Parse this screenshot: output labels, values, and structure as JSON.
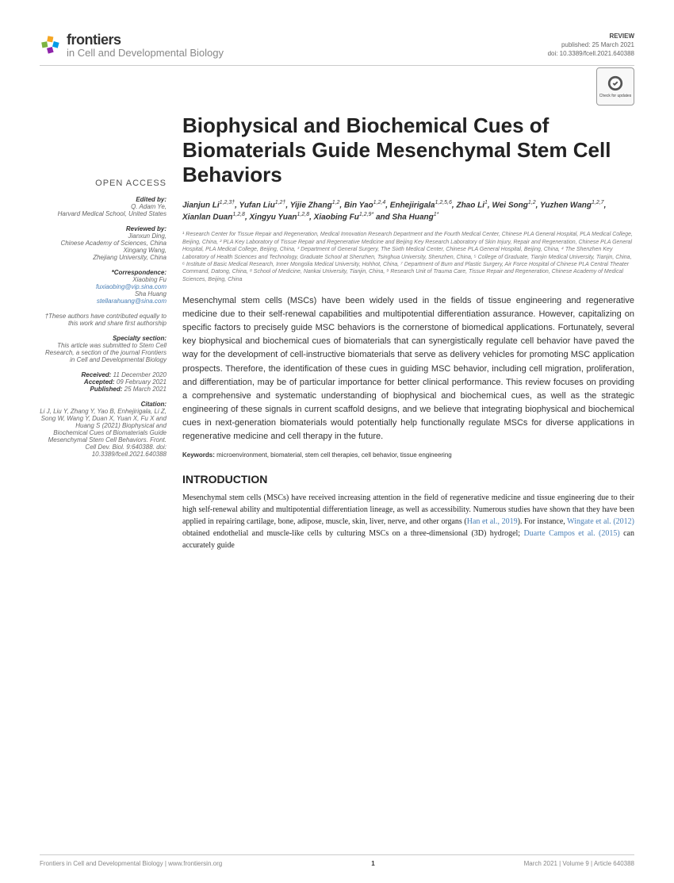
{
  "journal": {
    "brand": "frontiers",
    "sub": "in Cell and Developmental Biology"
  },
  "pub": {
    "type": "REVIEW",
    "published": "published: 25 March 2021",
    "doi": "doi: 10.3389/fcell.2021.640388"
  },
  "check": "Check for updates",
  "title": "Biophysical and Biochemical Cues of Biomaterials Guide Mesenchymal Stem Cell Behaviors",
  "authors_html": "Jianjun Li<sup>1,2,3†</sup>, Yufan Liu<sup>1,2†</sup>, Yijie Zhang<sup>1,2</sup>, Bin Yao<sup>1,2,4</sup>, Enhejirigala<sup>1,2,5,6</sup>, Zhao Li<sup>1</sup>, Wei Song<sup>1,2</sup>, Yuzhen Wang<sup>1,2,7</sup>, Xianlan Duan<sup>1,2,8</sup>, Xingyu Yuan<sup>1,2,8</sup>, Xiaobing Fu<sup>1,2,9*</sup> and Sha Huang<sup>1*</sup>",
  "affil": "¹ Research Center for Tissue Repair and Regeneration, Medical Innovation Research Department and the Fourth Medical Center, Chinese PLA General Hospital, PLA Medical College, Beijing, China, ² PLA Key Laboratory of Tissue Repair and Regenerative Medicine and Beijing Key Research Laboratory of Skin Injury, Repair and Regeneration, Chinese PLA General Hospital, PLA Medical College, Beijing, China, ³ Department of General Surgery, The Sixth Medical Center, Chinese PLA General Hospital, Beijing, China, ⁴ The Shenzhen Key Laboratory of Health Sciences and Technology, Graduate School at Shenzhen, Tsinghua University, Shenzhen, China, ⁵ College of Graduate, Tianjin Medical University, Tianjin, China, ⁶ Institute of Basic Medical Research, Inner Mongolia Medical University, Hohhot, China, ⁷ Department of Burn and Plastic Surgery, Air Force Hospital of Chinese PLA Central Theater Command, Datong, China, ⁸ School of Medicine, Nankai University, Tianjin, China, ⁹ Research Unit of Trauma Care, Tissue Repair and Regeneration, Chinese Academy of Medical Sciences, Beijing, China",
  "abstract": "Mesenchymal stem cells (MSCs) have been widely used in the fields of tissue engineering and regenerative medicine due to their self-renewal capabilities and multipotential differentiation assurance. However, capitalizing on specific factors to precisely guide MSC behaviors is the cornerstone of biomedical applications. Fortunately, several key biophysical and biochemical cues of biomaterials that can synergistically regulate cell behavior have paved the way for the development of cell-instructive biomaterials that serve as delivery vehicles for promoting MSC application prospects. Therefore, the identification of these cues in guiding MSC behavior, including cell migration, proliferation, and differentiation, may be of particular importance for better clinical performance. This review focuses on providing a comprehensive and systematic understanding of biophysical and biochemical cues, as well as the strategic engineering of these signals in current scaffold designs, and we believe that integrating biophysical and biochemical cues in next-generation biomaterials would potentially help functionally regulate MSCs for diverse applications in regenerative medicine and cell therapy in the future.",
  "keywords": {
    "label": "Keywords:",
    "text": "microenvironment, biomaterial, stem cell therapies, cell behavior, tissue engineering"
  },
  "intro_h": "INTRODUCTION",
  "intro_body": "Mesenchymal stem cells (MSCs) have received increasing attention in the field of regenerative medicine and tissue engineering due to their high self-renewal ability and multipotential differentiation lineage, as well as accessibility. Numerous studies have shown that they have been applied in repairing cartilage, bone, adipose, muscle, skin, liver, nerve, and other organs (<span class=\"cite\">Han et al., 2019</span>). For instance, <span class=\"cite\">Wingate et al. (2012)</span> obtained endothelial and muscle-like cells by culturing MSCs on a three-dimensional (3D) hydrogel; <span class=\"cite\">Duarte Campos et al. (2015)</span> can accurately guide",
  "sidebar": {
    "oa": "OPEN ACCESS",
    "editor": {
      "label": "Edited by:",
      "name": "Q. Adam Ye,",
      "place": "Harvard Medical School, United States"
    },
    "reviewers": {
      "label": "Reviewed by:",
      "r1n": "Jianxun Ding,",
      "r1p": "Chinese Academy of Sciences, China",
      "r2n": "Xingang Wang,",
      "r2p": "Zhejiang University, China"
    },
    "corr": {
      "label": "*Correspondence:",
      "n1": "Xiaobing Fu",
      "e1": "fuxiaobing@vip.sina.com",
      "n2": "Sha Huang",
      "e2": "stellarahuang@sina.com"
    },
    "contrib": "†These authors have contributed equally to this work and share first authorship",
    "specialty": {
      "label": "Specialty section:",
      "text": "This article was submitted to Stem Cell Research, a section of the journal Frontiers in Cell and Developmental Biology"
    },
    "received": {
      "label": "Received:",
      "val": "11 December 2020"
    },
    "accepted": {
      "label": "Accepted:",
      "val": "09 February 2021"
    },
    "published2": {
      "label": "Published:",
      "val": "25 March 2021"
    },
    "citation": {
      "label": "Citation:",
      "text": "Li J, Liu Y, Zhang Y, Yao B, Enhejirigala, Li Z, Song W, Wang Y, Duan X, Yuan X, Fu X and Huang S (2021) Biophysical and Biochemical Cues of Biomaterials Guide Mesenchymal Stem Cell Behaviors. Front. Cell Dev. Biol. 9:640388. doi: 10.3389/fcell.2021.640388"
    }
  },
  "footer": {
    "left": "Frontiers in Cell and Developmental Biology | www.frontiersin.org",
    "page": "1",
    "right": "March 2021 | Volume 9 | Article 640388"
  },
  "colors": {
    "logo1": "#f5a623",
    "logo2": "#7cb342",
    "logo3": "#039be5",
    "logo4": "#8e24aa",
    "link": "#4a7fb5"
  }
}
